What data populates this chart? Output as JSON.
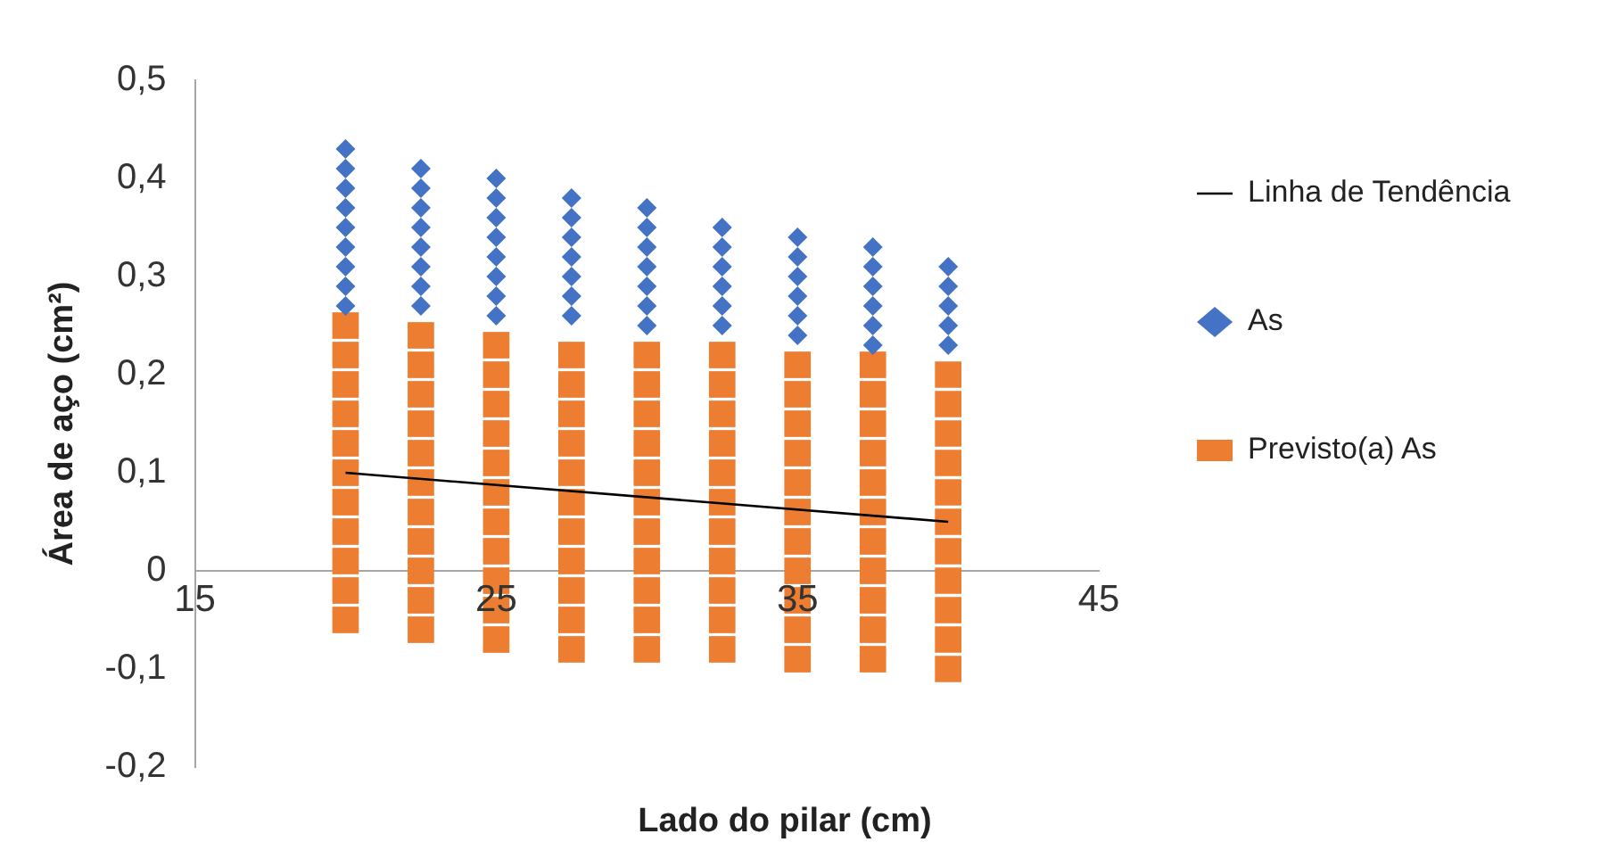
{
  "chart_data": {
    "type": "scatter",
    "xlabel": "Lado do pilar (cm)",
    "ylabel": "Área de aço (cm²)",
    "xlim": [
      15,
      45
    ],
    "xticks": [
      15,
      25,
      35,
      45
    ],
    "ylim": [
      -0.2,
      0.5
    ],
    "yticks": [
      {
        "value": -0.2,
        "label": "-0,2"
      },
      {
        "value": -0.1,
        "label": "-0,1"
      },
      0,
      {
        "value": 0.1,
        "label": "0,1"
      },
      {
        "value": 0.2,
        "label": "0,2"
      },
      {
        "value": 0.3,
        "label": "0,3"
      },
      {
        "value": 0.4,
        "label": "0,4"
      },
      {
        "value": 0.5,
        "label": "0,5"
      }
    ],
    "grid": false,
    "legend": "right",
    "series": [
      {
        "name": "As",
        "type": "scatter",
        "marker": "diamond",
        "color": "#4472c4",
        "x": [
          20,
          20,
          20,
          20,
          20,
          20,
          20,
          20,
          20,
          22.5,
          22.5,
          22.5,
          22.5,
          22.5,
          22.5,
          22.5,
          22.5,
          25,
          25,
          25,
          25,
          25,
          25,
          25,
          25,
          27.5,
          27.5,
          27.5,
          27.5,
          27.5,
          27.5,
          27.5,
          30,
          30,
          30,
          30,
          30,
          30,
          30,
          32.5,
          32.5,
          32.5,
          32.5,
          32.5,
          32.5,
          35,
          35,
          35,
          35,
          35,
          35,
          37.5,
          37.5,
          37.5,
          37.5,
          37.5,
          37.5,
          40,
          40,
          40,
          40,
          40
        ],
        "values": [
          0.27,
          0.29,
          0.31,
          0.33,
          0.35,
          0.37,
          0.39,
          0.41,
          0.43,
          0.27,
          0.29,
          0.31,
          0.33,
          0.35,
          0.37,
          0.39,
          0.41,
          0.26,
          0.28,
          0.3,
          0.32,
          0.34,
          0.36,
          0.38,
          0.4,
          0.26,
          0.28,
          0.3,
          0.32,
          0.34,
          0.36,
          0.38,
          0.25,
          0.27,
          0.29,
          0.31,
          0.33,
          0.35,
          0.37,
          0.25,
          0.27,
          0.29,
          0.31,
          0.33,
          0.35,
          0.24,
          0.26,
          0.28,
          0.3,
          0.32,
          0.34,
          0.23,
          0.25,
          0.27,
          0.29,
          0.31,
          0.33,
          0.23,
          0.25,
          0.27,
          0.29,
          0.31
        ]
      },
      {
        "name": "Previsto(a) As",
        "type": "scatter",
        "marker": "square",
        "color": "#ed7d31",
        "x": [
          20,
          20,
          20,
          20,
          20,
          20,
          20,
          20,
          20,
          20,
          20,
          22.5,
          22.5,
          22.5,
          22.5,
          22.5,
          22.5,
          22.5,
          22.5,
          22.5,
          22.5,
          22.5,
          25,
          25,
          25,
          25,
          25,
          25,
          25,
          25,
          25,
          25,
          25,
          27.5,
          27.5,
          27.5,
          27.5,
          27.5,
          27.5,
          27.5,
          27.5,
          27.5,
          27.5,
          27.5,
          30,
          30,
          30,
          30,
          30,
          30,
          30,
          30,
          30,
          30,
          30,
          32.5,
          32.5,
          32.5,
          32.5,
          32.5,
          32.5,
          32.5,
          32.5,
          32.5,
          32.5,
          32.5,
          35,
          35,
          35,
          35,
          35,
          35,
          35,
          35,
          35,
          35,
          35,
          37.5,
          37.5,
          37.5,
          37.5,
          37.5,
          37.5,
          37.5,
          37.5,
          37.5,
          37.5,
          37.5,
          40,
          40,
          40,
          40,
          40,
          40,
          40,
          40,
          40,
          40,
          40
        ],
        "values": [
          -0.05,
          -0.02,
          0.01,
          0.04,
          0.07,
          0.1,
          0.13,
          0.16,
          0.19,
          0.22,
          0.25,
          -0.06,
          -0.03,
          0,
          0.03,
          0.06,
          0.09,
          0.12,
          0.15,
          0.18,
          0.21,
          0.24,
          -0.07,
          -0.04,
          -0.01,
          0.02,
          0.05,
          0.08,
          0.11,
          0.14,
          0.17,
          0.2,
          0.23,
          -0.08,
          -0.05,
          -0.02,
          0.01,
          0.04,
          0.07,
          0.1,
          0.13,
          0.16,
          0.19,
          0.22,
          -0.08,
          -0.05,
          -0.02,
          0.01,
          0.04,
          0.07,
          0.1,
          0.13,
          0.16,
          0.19,
          0.22,
          -0.08,
          -0.05,
          -0.02,
          0.01,
          0.04,
          0.07,
          0.1,
          0.13,
          0.16,
          0.19,
          0.22,
          -0.09,
          -0.06,
          -0.03,
          0,
          0.03,
          0.06,
          0.09,
          0.12,
          0.15,
          0.18,
          0.21,
          -0.09,
          -0.06,
          -0.03,
          0,
          0.03,
          0.06,
          0.09,
          0.12,
          0.15,
          0.18,
          0.21,
          -0.1,
          -0.07,
          -0.04,
          -0.01,
          0.02,
          0.05,
          0.08,
          0.11,
          0.14,
          0.17,
          0.2
        ]
      },
      {
        "name": "Linha de Tendência",
        "type": "line",
        "marker": "none",
        "color": "#000000",
        "x": [
          20,
          40
        ],
        "values": [
          0.1,
          0.05
        ]
      }
    ]
  }
}
